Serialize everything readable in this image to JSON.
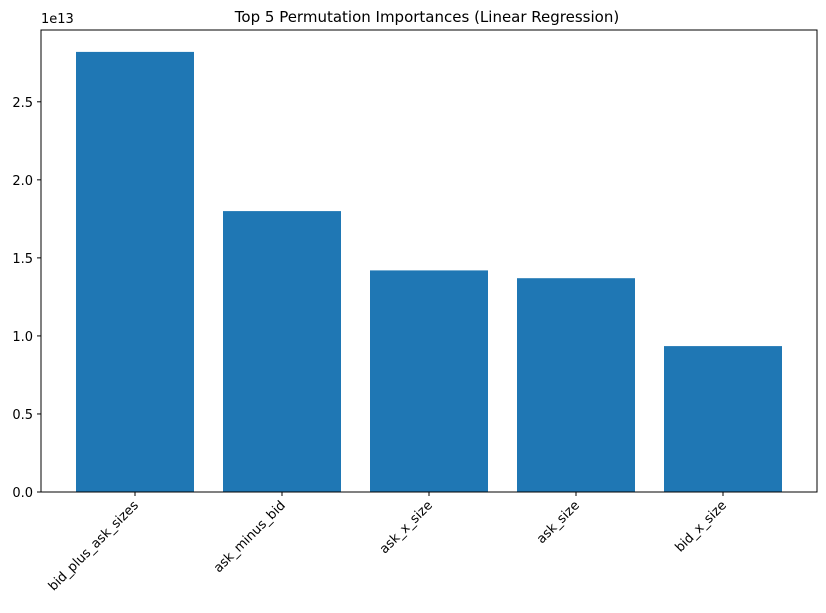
{
  "chart_data": {
    "type": "bar",
    "title": "Top 5 Permutation Importances (Linear Regression)",
    "xlabel": "",
    "ylabel": "",
    "scale_label": "1e13",
    "categories": [
      "bid_plus_ask_sizes",
      "ask_minus_bid",
      "ask_x_size",
      "ask_size",
      "bid_x_size"
    ],
    "values": [
      28200000000000.0,
      18000000000000.0,
      14200000000000.0,
      13700000000000.0,
      9350000000000.0
    ],
    "ylim": [
      0,
      29600000000000.0
    ],
    "yticks": [
      0,
      5000000000000.0,
      10000000000000.0,
      15000000000000.0,
      20000000000000.0,
      25000000000000.0
    ],
    "ytick_labels": [
      "0.0",
      "0.5",
      "1.0",
      "1.5",
      "2.0",
      "2.5"
    ],
    "grid": false,
    "bar_color": "#1f77b4"
  }
}
